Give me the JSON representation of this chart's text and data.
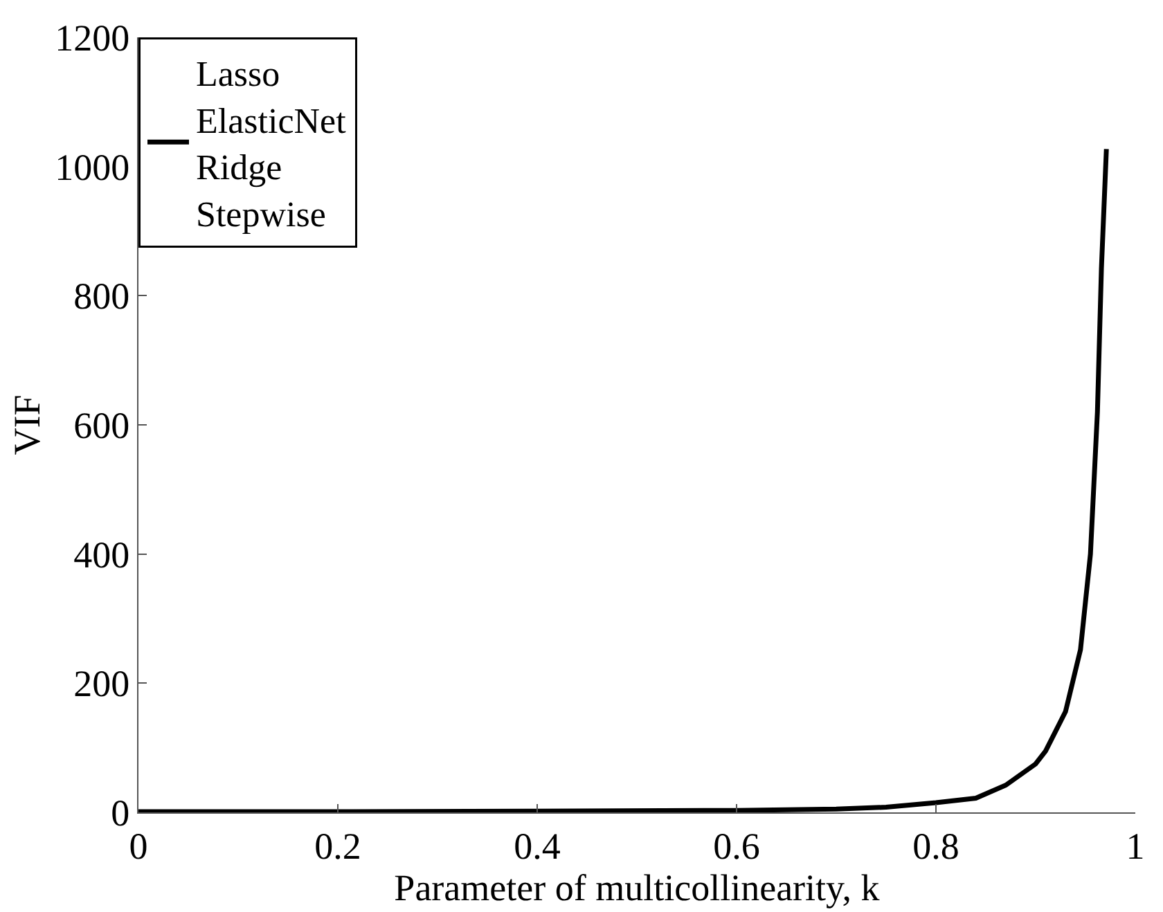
{
  "chart_data": {
    "type": "line",
    "xlabel": "Parameter of multicollinearity, k",
    "ylabel": "VIF",
    "x": [
      0,
      0.2,
      0.4,
      0.6,
      0.7,
      0.75,
      0.8,
      0.84,
      0.87,
      0.9,
      0.91,
      0.93,
      0.945,
      0.955,
      0.962,
      0.966,
      0.971
    ],
    "series": [
      {
        "name": "Lasso\nElasticNet\nRidge\nStepwise",
        "color": "#000000",
        "values": [
          1,
          1,
          2,
          3,
          5,
          8,
          15,
          22,
          42,
          75,
          95,
          156,
          252,
          400,
          620,
          842,
          1027
        ]
      }
    ],
    "xlim": [
      0,
      1
    ],
    "xticks": [
      0,
      0.2,
      0.4,
      0.6,
      0.8,
      1
    ],
    "ylim": [
      0,
      1200
    ],
    "yticks": [
      0,
      200,
      400,
      600,
      800,
      1000,
      1200
    ],
    "legend": "top left",
    "marker": "none",
    "line_style": "solid"
  }
}
